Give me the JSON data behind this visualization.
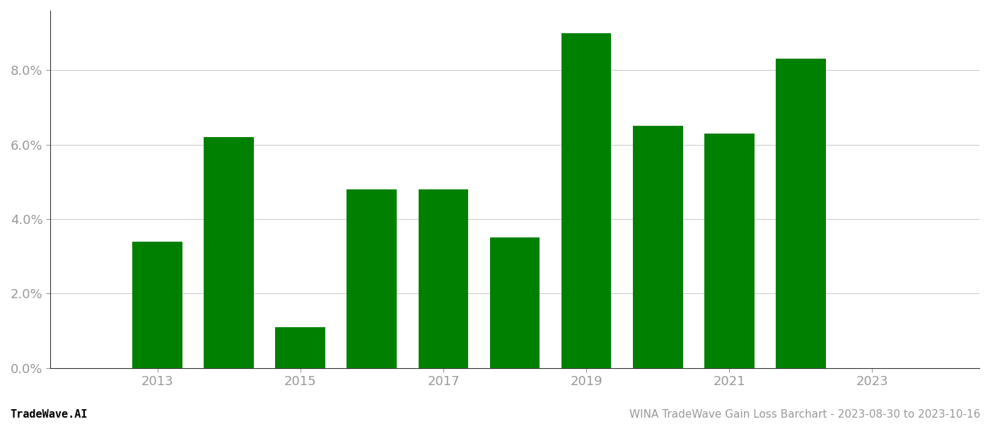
{
  "years": [
    2013,
    2014,
    2015,
    2016,
    2017,
    2018,
    2019,
    2020,
    2021,
    2022,
    2023
  ],
  "values": [
    0.034,
    0.062,
    0.011,
    0.048,
    0.048,
    0.035,
    0.09,
    0.065,
    0.063,
    0.083,
    null
  ],
  "bar_color": "#008000",
  "background_color": "#ffffff",
  "ylim": [
    0,
    0.096
  ],
  "yticks": [
    0.0,
    0.02,
    0.04,
    0.06,
    0.08
  ],
  "xtick_labels": [
    "2013",
    "2015",
    "2017",
    "2019",
    "2021",
    "2023"
  ],
  "xtick_positions": [
    2013,
    2015,
    2017,
    2019,
    2021,
    2023
  ],
  "footer_left": "TradeWave.AI",
  "footer_right": "WINA TradeWave Gain Loss Barchart - 2023-08-30 to 2023-10-16",
  "grid_color": "#cccccc",
  "spine_color": "#333333",
  "tick_color": "#999999",
  "footer_fontsize": 11,
  "bar_width": 0.7,
  "xlim_left": 2011.5,
  "xlim_right": 2024.5
}
